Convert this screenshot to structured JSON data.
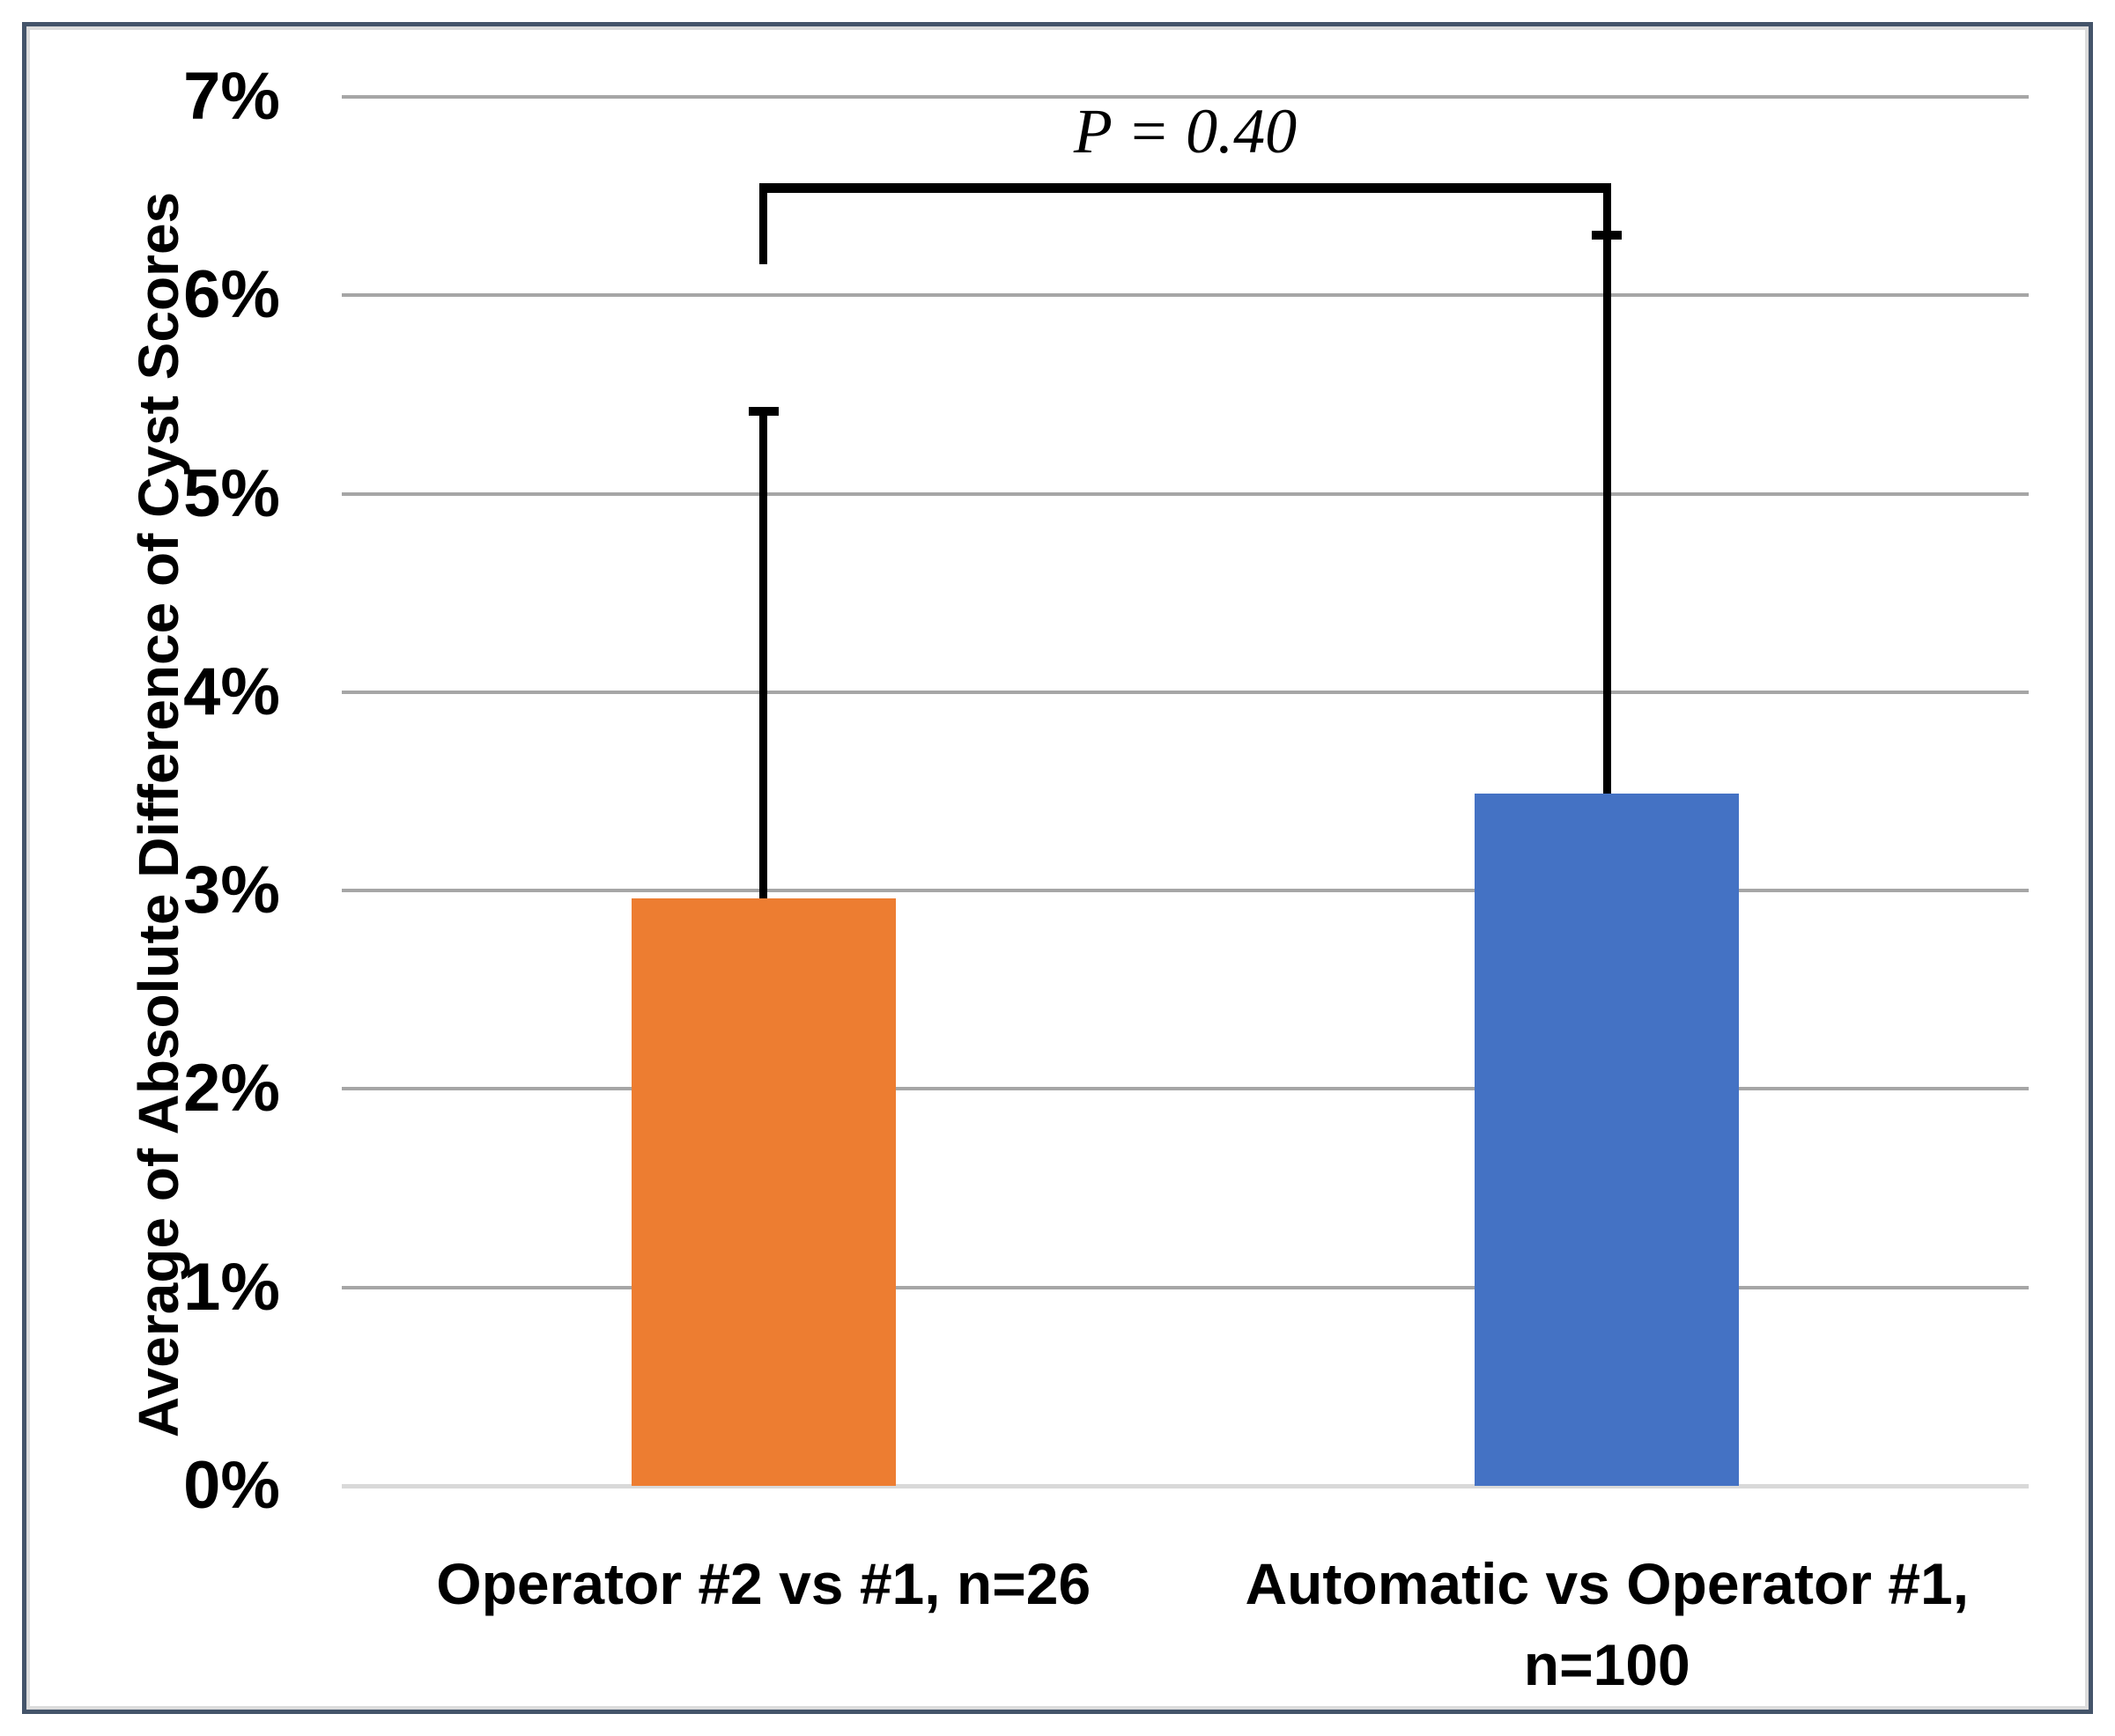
{
  "chart_data": {
    "type": "bar",
    "title": "",
    "xlabel": "",
    "ylabel": "Average of Absolute Difference of Cyst Scores",
    "categories": [
      "Operator #2 vs #1, n=26",
      "Automatic vs Operator #1,\nn=100"
    ],
    "series": [
      {
        "name": "Average of absolute difference of cyst scores",
        "values": [
          2.96,
          3.49
        ]
      }
    ],
    "error_bar_tops": [
      5.41,
      6.3
    ],
    "ylim": [
      0,
      7
    ],
    "ytick_labels": [
      "0%",
      "1%",
      "2%",
      "3%",
      "4%",
      "5%",
      "6%",
      "7%"
    ],
    "grid": true,
    "legend": "none",
    "annotation": {
      "text": "P = 0.40",
      "connects_categories": [
        0,
        1
      ]
    },
    "colors": {
      "bar_1": "#ED7D31",
      "bar_2": "#4472C4",
      "gridline": "#A6A6A6",
      "axis_line": "#D9D9D9",
      "frame_border": "#44546A",
      "error_bar": "#000000",
      "background": "#FFFFFF"
    }
  }
}
